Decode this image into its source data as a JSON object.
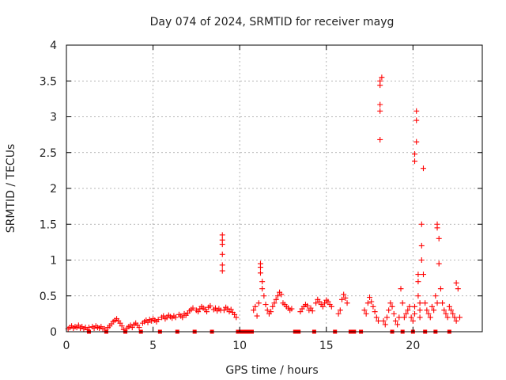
{
  "chart_data": {
    "type": "scatter",
    "title": "Day 074 of 2024, SRMTID for receiver mayg",
    "xlabel": "GPS time / hours",
    "ylabel": "SRMTID / TECUs",
    "xlim": [
      0,
      24
    ],
    "ylim": [
      0,
      4
    ],
    "xticks": [
      0,
      5,
      10,
      15,
      20
    ],
    "xtick_labels": [
      "0",
      "5",
      "10",
      "15",
      "20"
    ],
    "yticks": [
      0,
      0.5,
      1,
      1.5,
      2,
      2.5,
      3,
      3.5,
      4
    ],
    "ytick_labels": [
      "0",
      "0.5",
      "1",
      "1.5",
      "2",
      "2.5",
      "3",
      "3.5",
      "4"
    ],
    "grid": true,
    "marker": "plus",
    "series": [
      {
        "name": "SRMTID",
        "color": "#ff0000",
        "x": [
          0.1,
          0.2,
          0.3,
          0.4,
          0.5,
          0.6,
          0.7,
          0.8,
          0.9,
          1.0,
          1.1,
          1.2,
          1.3,
          1.5,
          1.6,
          1.7,
          1.8,
          1.9,
          2.0,
          2.1,
          2.2,
          2.4,
          2.5,
          2.6,
          2.7,
          2.8,
          2.9,
          3.0,
          3.1,
          3.2,
          3.3,
          3.5,
          3.6,
          3.7,
          3.8,
          3.9,
          4.0,
          4.1,
          4.2,
          4.4,
          4.5,
          4.6,
          4.7,
          4.8,
          4.9,
          5.0,
          5.1,
          5.2,
          5.3,
          5.5,
          5.6,
          5.7,
          5.8,
          5.9,
          6.0,
          6.1,
          6.2,
          6.3,
          6.5,
          6.6,
          6.7,
          6.8,
          6.9,
          7.0,
          7.1,
          7.2,
          7.3,
          7.5,
          7.6,
          7.7,
          7.8,
          7.9,
          8.0,
          8.1,
          8.2,
          8.3,
          8.5,
          8.6,
          8.7,
          8.8,
          8.9,
          9.0,
          9.0,
          9.0,
          9.0,
          9.0,
          9.0,
          9.1,
          9.2,
          9.3,
          9.4,
          9.5,
          9.6,
          9.7,
          9.8,
          10.8,
          10.9,
          11.0,
          11.1,
          11.2,
          11.2,
          11.2,
          11.3,
          11.3,
          11.4,
          11.5,
          11.6,
          11.7,
          11.8,
          11.9,
          12.0,
          12.1,
          12.2,
          12.3,
          12.4,
          12.5,
          12.6,
          12.7,
          12.8,
          12.9,
          13.0,
          13.5,
          13.6,
          13.7,
          13.8,
          13.9,
          14.0,
          14.1,
          14.2,
          14.4,
          14.5,
          14.6,
          14.7,
          14.8,
          14.9,
          15.0,
          15.1,
          15.2,
          15.3,
          15.7,
          15.8,
          15.9,
          16.0,
          16.1,
          16.2,
          17.2,
          17.3,
          17.4,
          17.5,
          17.6,
          17.7,
          17.8,
          17.9,
          18.0,
          18.1,
          18.1,
          18.1,
          18.1,
          18.1,
          18.2,
          18.3,
          18.4,
          18.5,
          18.6,
          18.7,
          18.8,
          18.9,
          19.0,
          19.1,
          19.2,
          19.3,
          19.4,
          19.5,
          19.6,
          19.7,
          19.8,
          19.9,
          20.0,
          20.1,
          20.1,
          20.1,
          20.1,
          20.2,
          20.2,
          20.2,
          20.3,
          20.3,
          20.3,
          20.4,
          20.4,
          20.4,
          20.5,
          20.5,
          20.5,
          20.6,
          20.6,
          20.7,
          20.8,
          20.9,
          21.0,
          21.1,
          21.2,
          21.3,
          21.4,
          21.4,
          21.4,
          21.5,
          21.5,
          21.6,
          21.7,
          21.8,
          21.9,
          22.0,
          22.1,
          22.2,
          22.3,
          22.4,
          22.5,
          22.5,
          22.6,
          22.7
        ],
        "y": [
          0.04,
          0.06,
          0.08,
          0.05,
          0.07,
          0.06,
          0.09,
          0.05,
          0.07,
          0.04,
          0.06,
          0.03,
          0.06,
          0.07,
          0.05,
          0.08,
          0.06,
          0.05,
          0.07,
          0.04,
          0.04,
          0.06,
          0.08,
          0.11,
          0.14,
          0.16,
          0.18,
          0.15,
          0.12,
          0.08,
          0.03,
          0.05,
          0.07,
          0.09,
          0.06,
          0.1,
          0.12,
          0.09,
          0.06,
          0.12,
          0.14,
          0.16,
          0.13,
          0.17,
          0.15,
          0.18,
          0.16,
          0.14,
          0.17,
          0.2,
          0.22,
          0.18,
          0.2,
          0.23,
          0.21,
          0.19,
          0.22,
          0.2,
          0.24,
          0.22,
          0.2,
          0.25,
          0.23,
          0.26,
          0.29,
          0.31,
          0.33,
          0.3,
          0.28,
          0.32,
          0.35,
          0.33,
          0.31,
          0.28,
          0.34,
          0.36,
          0.31,
          0.33,
          0.29,
          0.32,
          0.3,
          1.35,
          1.28,
          1.22,
          1.08,
          0.93,
          0.85,
          0.3,
          0.34,
          0.32,
          0.28,
          0.31,
          0.27,
          0.24,
          0.2,
          0.3,
          0.35,
          0.22,
          0.4,
          0.95,
          0.9,
          0.82,
          0.7,
          0.6,
          0.5,
          0.38,
          0.3,
          0.25,
          0.28,
          0.35,
          0.4,
          0.45,
          0.5,
          0.55,
          0.52,
          0.4,
          0.38,
          0.35,
          0.33,
          0.3,
          0.32,
          0.28,
          0.32,
          0.35,
          0.38,
          0.36,
          0.3,
          0.33,
          0.29,
          0.4,
          0.45,
          0.42,
          0.38,
          0.35,
          0.4,
          0.44,
          0.42,
          0.38,
          0.35,
          0.25,
          0.3,
          0.45,
          0.52,
          0.47,
          0.4,
          0.3,
          0.25,
          0.4,
          0.48,
          0.42,
          0.35,
          0.28,
          0.2,
          0.15,
          2.68,
          3.08,
          3.17,
          3.44,
          3.5,
          3.55,
          0.15,
          0.1,
          0.2,
          0.3,
          0.4,
          0.35,
          0.25,
          0.15,
          0.1,
          0.2,
          0.6,
          0.4,
          0.2,
          0.25,
          0.3,
          0.35,
          0.2,
          0.15,
          0.25,
          0.35,
          2.38,
          2.48,
          2.65,
          2.95,
          3.08,
          0.8,
          0.7,
          0.5,
          0.4,
          0.3,
          0.2,
          1.5,
          1.2,
          1.0,
          0.8,
          2.28,
          0.4,
          0.3,
          0.25,
          0.2,
          0.35,
          0.3,
          0.5,
          0.4,
          1.5,
          1.45,
          1.3,
          0.95,
          0.6,
          0.4,
          0.3,
          0.25,
          0.2,
          0.35,
          0.3,
          0.25,
          0.2,
          0.15,
          0.68,
          0.6,
          0.2
        ]
      }
    ],
    "zero_markers": {
      "color": "#ff0000",
      "x": [
        1.3,
        2.3,
        3.4,
        4.3,
        5.4,
        6.4,
        7.4,
        8.4,
        9.9,
        10.1,
        10.3,
        10.5,
        10.7,
        13.2,
        13.4,
        14.3,
        15.5,
        16.4,
        16.6,
        17.0,
        18.8,
        19.4,
        20.0,
        20.7,
        21.3,
        22.1
      ]
    }
  }
}
